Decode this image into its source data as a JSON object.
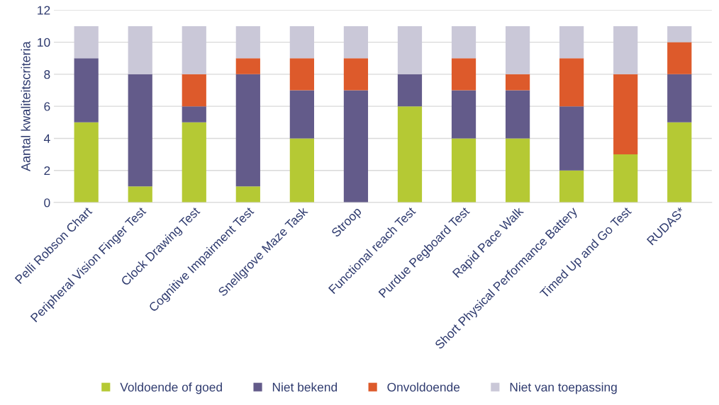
{
  "chart_data": {
    "type": "bar",
    "stacked": true,
    "ylabel": "Aantal kwaliteitscriteria",
    "categories": [
      "Pelli Robson Chart",
      "Peripheral Vision Finger Test",
      "Clock Drawing Test",
      "Cognitive Impairment Test",
      "Snellgrove Maze Task",
      "Stroop",
      "Functional reach Test",
      "Purdue Pegboard Test",
      "Rapid Pace Walk",
      "Short Physical Performance Battery",
      "Timed Up and Go Test",
      "RUDAS*"
    ],
    "series": [
      {
        "name": "Voldoende of goed",
        "color": "#b5c934",
        "values": [
          5,
          1,
          5,
          1,
          4,
          0,
          6,
          4,
          4,
          2,
          3,
          5
        ]
      },
      {
        "name": "Niet bekend",
        "color": "#635b8a",
        "values": [
          4,
          7,
          1,
          7,
          3,
          7,
          2,
          3,
          3,
          4,
          0,
          3
        ]
      },
      {
        "name": "Onvoldoende",
        "color": "#dd5a2b",
        "values": [
          0,
          0,
          2,
          1,
          2,
          2,
          0,
          2,
          1,
          3,
          5,
          2
        ]
      },
      {
        "name": "Niet van toepassing",
        "color": "#cac8d8",
        "values": [
          2,
          3,
          3,
          2,
          2,
          2,
          3,
          2,
          3,
          2,
          3,
          1
        ]
      }
    ],
    "ylim": [
      0,
      12
    ],
    "yticks": [
      0,
      2,
      4,
      6,
      8,
      10,
      12
    ],
    "grid": "y",
    "legend": "bottom"
  }
}
